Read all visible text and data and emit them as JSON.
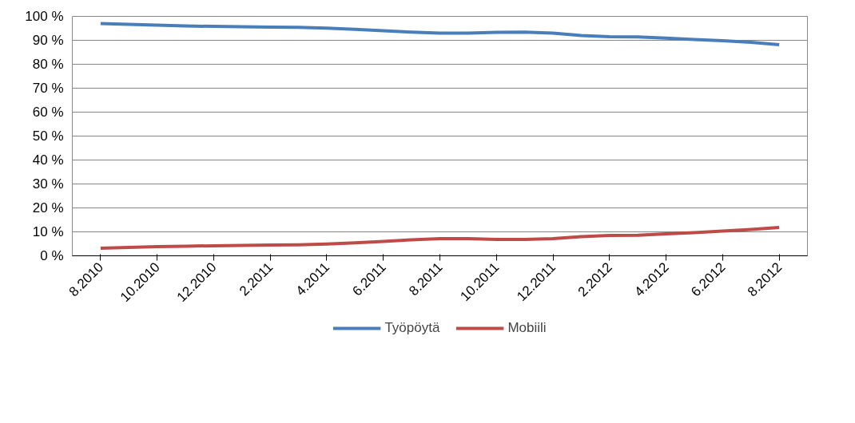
{
  "chart_data": {
    "type": "line",
    "categories": [
      "8.2010",
      null,
      "10.2010",
      null,
      "12.2010",
      null,
      "2.2011",
      null,
      "4.2011",
      null,
      "6.2011",
      null,
      "8.2011",
      null,
      "10.2011",
      null,
      "12.2011",
      null,
      "2.2012",
      null,
      "4.2012",
      null,
      "6.2012",
      null,
      "8.2012"
    ],
    "series": [
      {
        "name": "Työpöytä",
        "color": "#4a7ebb",
        "values": [
          97,
          96.7,
          96.3,
          96.0,
          95.8,
          95.7,
          95.5,
          95.4,
          95.1,
          94.6,
          94.0,
          93.4,
          93.0,
          93.0,
          93.3,
          93.4,
          93.0,
          92.0,
          91.5,
          91.4,
          90.9,
          90.3,
          89.8,
          89.2,
          88.2
        ]
      },
      {
        "name": "Mobiili",
        "color": "#be4b48",
        "values": [
          3.2,
          3.5,
          3.8,
          4.0,
          4.2,
          4.3,
          4.5,
          4.6,
          4.9,
          5.4,
          6.0,
          6.7,
          7.2,
          7.2,
          6.8,
          6.8,
          7.2,
          8.0,
          8.5,
          8.6,
          9.2,
          9.7,
          10.3,
          11.0,
          11.8
        ]
      }
    ],
    "ylim": [
      0,
      100
    ],
    "yticks": [
      {
        "value": 0,
        "label": "0 %"
      },
      {
        "value": 10,
        "label": "10 %"
      },
      {
        "value": 20,
        "label": "20 %"
      },
      {
        "value": 30,
        "label": "30 %"
      },
      {
        "value": 40,
        "label": "40 %"
      },
      {
        "value": 50,
        "label": "50 %"
      },
      {
        "value": 60,
        "label": "60 %"
      },
      {
        "value": 70,
        "label": "70 %"
      },
      {
        "value": 80,
        "label": "80 %"
      },
      {
        "value": 90,
        "label": "90 %"
      },
      {
        "value": 100,
        "label": "100 %"
      }
    ],
    "grid": "y",
    "legend": "bottom",
    "marker": "none",
    "line_style": "solid"
  }
}
